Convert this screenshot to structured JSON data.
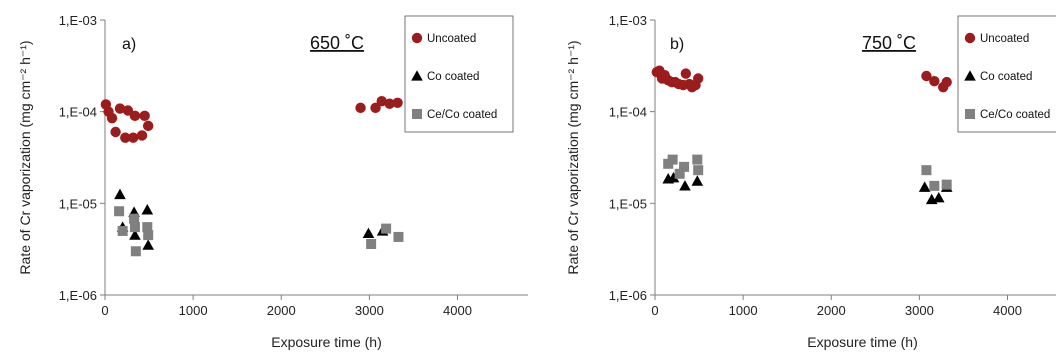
{
  "colors": {
    "uncoated": "#9b1c1c",
    "co_coated": "#000000",
    "ceco_coated": "#808080",
    "axis": "#7f7f7f"
  },
  "chart_data": [
    {
      "type": "scatter",
      "panel_label": "a)",
      "temperature_label": "650 ˚C",
      "xlabel": "Exposure time (h)",
      "ylabel": "Rate of Cr vaporization (mg cm⁻² h⁻¹)",
      "y_scale": "log",
      "xlim": [
        0,
        4800
      ],
      "ylim": [
        1e-06,
        0.001
      ],
      "x_ticks": [
        "0",
        "1000",
        "2000",
        "3000",
        "4000"
      ],
      "y_ticks": [
        "1,E-06",
        "1,E-05",
        "1,E-04",
        "1,E-03"
      ],
      "legend_position": "top-right",
      "series": [
        {
          "name": "Uncoated",
          "marker": "circle",
          "points": [
            [
              10,
              0.00012
            ],
            [
              40,
              0.0001
            ],
            [
              80,
              8.5e-05
            ],
            [
              120,
              6e-05
            ],
            [
              170,
              0.000108
            ],
            [
              230,
              5.2e-05
            ],
            [
              260,
              0.000103
            ],
            [
              320,
              5.2e-05
            ],
            [
              340,
              9e-05
            ],
            [
              420,
              5.5e-05
            ],
            [
              450,
              9e-05
            ],
            [
              490,
              7e-05
            ],
            [
              2900,
              0.00011
            ],
            [
              3070,
              0.00011
            ],
            [
              3140,
              0.00013
            ],
            [
              3230,
              0.000122
            ],
            [
              3320,
              0.000125
            ]
          ]
        },
        {
          "name": "Co coated",
          "marker": "triangle",
          "points": [
            [
              170,
              1.25e-05
            ],
            [
              200,
              5.5e-06
            ],
            [
              330,
              8e-06
            ],
            [
              340,
              4.5e-06
            ],
            [
              480,
              8.5e-06
            ],
            [
              490,
              3.5e-06
            ],
            [
              2990,
              4.7e-06
            ],
            [
              3150,
              5e-06
            ]
          ]
        },
        {
          "name": "Ce/Co coated",
          "marker": "square",
          "points": [
            [
              160,
              8.2e-06
            ],
            [
              200,
              5e-06
            ],
            [
              330,
              6.8e-06
            ],
            [
              340,
              5.5e-06
            ],
            [
              350,
              3e-06
            ],
            [
              480,
              5.5e-06
            ],
            [
              490,
              4.5e-06
            ],
            [
              3020,
              3.6e-06
            ],
            [
              3190,
              5.3e-06
            ],
            [
              3330,
              4.3e-06
            ]
          ]
        }
      ]
    },
    {
      "type": "scatter",
      "panel_label": "b)",
      "temperature_label": "750 ˚C",
      "xlabel": "Exposure time (h)",
      "ylabel": "Rate of Cr vaporization (mg cm⁻² h⁻¹)",
      "y_scale": "log",
      "xlim": [
        0,
        4800
      ],
      "ylim": [
        1e-06,
        0.001
      ],
      "x_ticks": [
        "0",
        "1000",
        "2000",
        "3000",
        "4000"
      ],
      "y_ticks": [
        "1,E-06",
        "1,E-05",
        "1,E-04",
        "1,E-03"
      ],
      "legend_position": "top-right",
      "series": [
        {
          "name": "Uncoated",
          "marker": "circle",
          "points": [
            [
              20,
              0.00027
            ],
            [
              50,
              0.00028
            ],
            [
              80,
              0.00023
            ],
            [
              110,
              0.00025
            ],
            [
              150,
              0.00022
            ],
            [
              190,
              0.00021
            ],
            [
              230,
              0.00021
            ],
            [
              270,
              0.0002
            ],
            [
              320,
              0.000195
            ],
            [
              350,
              0.00026
            ],
            [
              390,
              0.0002
            ],
            [
              420,
              0.000185
            ],
            [
              460,
              0.000195
            ],
            [
              490,
              0.00023
            ],
            [
              3080,
              0.000245
            ],
            [
              3170,
              0.000215
            ],
            [
              3270,
              0.000185
            ],
            [
              3310,
              0.00021
            ]
          ]
        },
        {
          "name": "Co coated",
          "marker": "triangle",
          "points": [
            [
              150,
              1.85e-05
            ],
            [
              210,
              1.9e-05
            ],
            [
              340,
              1.55e-05
            ],
            [
              480,
              1.75e-05
            ],
            [
              3060,
              1.5e-05
            ],
            [
              3140,
              1.1e-05
            ],
            [
              3220,
              1.15e-05
            ],
            [
              3310,
              1.5e-05
            ]
          ]
        },
        {
          "name": "Ce/Co coated",
          "marker": "square",
          "points": [
            [
              150,
              2.7e-05
            ],
            [
              200,
              3e-05
            ],
            [
              280,
              2.1e-05
            ],
            [
              330,
              2.5e-05
            ],
            [
              480,
              3e-05
            ],
            [
              490,
              2.3e-05
            ],
            [
              3080,
              2.3e-05
            ],
            [
              3170,
              1.55e-05
            ],
            [
              3310,
              1.6e-05
            ]
          ]
        }
      ]
    }
  ]
}
